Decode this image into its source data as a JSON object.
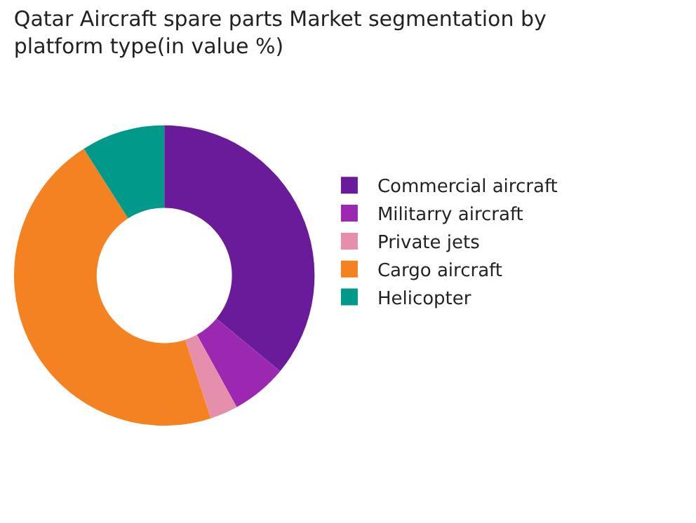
{
  "chart_data": {
    "type": "donut",
    "title": "Qatar Aircraft spare parts Market segmentation by platform type(in value %)",
    "categories": [
      "Commercial aircraft",
      "Militarry aircraft",
      "Private jets",
      "Cargo aircraft",
      "Helicopter"
    ],
    "values": [
      36,
      6,
      3,
      46,
      9
    ],
    "colors": [
      "#6a1b9a",
      "#9c27b0",
      "#e68fac",
      "#f58220",
      "#00998a"
    ],
    "legend": "right"
  }
}
